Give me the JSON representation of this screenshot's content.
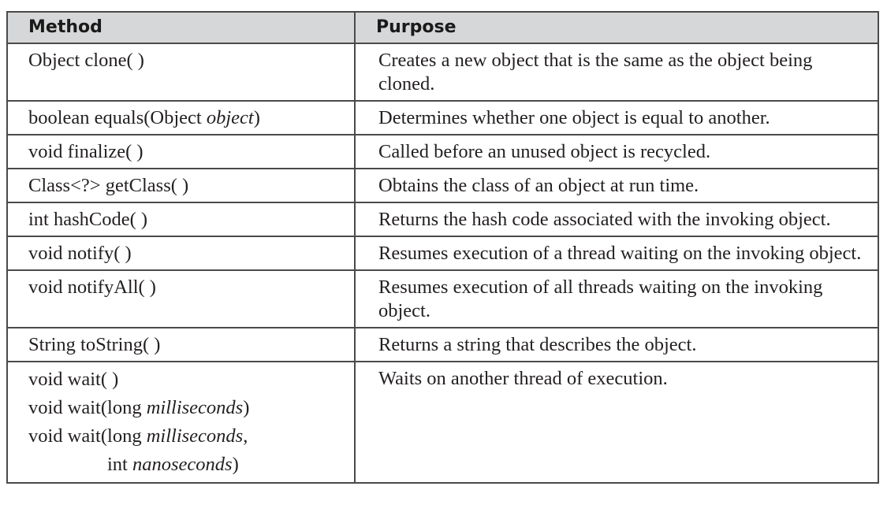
{
  "headers": {
    "method": "Method",
    "purpose": "Purpose"
  },
  "rows": [
    {
      "method": [
        {
          "pre": "Object clone( )"
        }
      ],
      "purpose": "Creates a new object that is the same as the object being cloned."
    },
    {
      "method": [
        {
          "pre": "boolean equals(Object ",
          "param": "object",
          "post": ")"
        }
      ],
      "purpose": "Determines whether one object is equal to another."
    },
    {
      "method": [
        {
          "pre": "void finalize( )"
        }
      ],
      "purpose": "Called before an unused object is recycled."
    },
    {
      "method": [
        {
          "pre": "Class<?> getClass( )"
        }
      ],
      "purpose": "Obtains the class of an object at run time."
    },
    {
      "method": [
        {
          "pre": "int hashCode( )"
        }
      ],
      "purpose": "Returns the hash code associated with the invoking object."
    },
    {
      "method": [
        {
          "pre": "void notify( )"
        }
      ],
      "purpose": "Resumes execution of a thread waiting on the invoking object."
    },
    {
      "method": [
        {
          "pre": "void notifyAll( )"
        }
      ],
      "purpose": "Resumes execution of all threads waiting on the invoking object."
    },
    {
      "method": [
        {
          "pre": "String toString( )"
        }
      ],
      "purpose": "Returns a string that describes the object."
    },
    {
      "method": [
        {
          "pre": "void wait( )"
        },
        {
          "pre": "void wait(long ",
          "param": "milliseconds",
          "post": ")"
        },
        {
          "pre": "void wait(long ",
          "param": "milliseconds",
          "post": ","
        },
        {
          "pre": "int ",
          "param": "nanoseconds",
          "post": ")"
        }
      ],
      "purpose": "Waits on another thread of execution."
    }
  ]
}
